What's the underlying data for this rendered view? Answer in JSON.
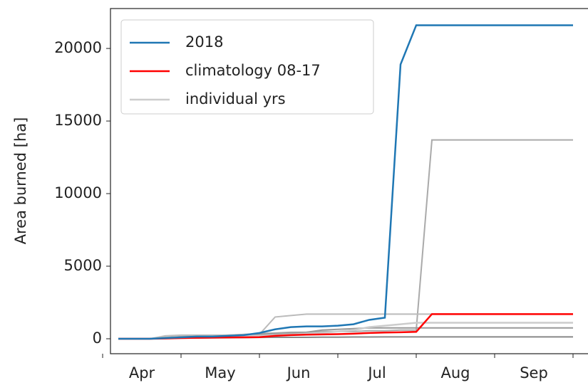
{
  "chart_data": {
    "type": "line",
    "ylabel": "Area burned [ha]",
    "categories": [
      null,
      null,
      "Apr",
      null,
      null,
      null,
      null,
      "May",
      null,
      null,
      null,
      null,
      "Jun",
      null,
      null,
      null,
      null,
      "Jul",
      null,
      null,
      null,
      null,
      "Aug",
      null,
      null,
      null,
      null,
      "Sep",
      null,
      null
    ],
    "ylim": [
      -1030,
      22750
    ],
    "yticks": [
      0,
      5000,
      10000,
      15000,
      20000
    ],
    "legend": "upper left",
    "series": [
      {
        "color": "#aaaaaa",
        "values": [
          0,
          0,
          0,
          100,
          150,
          200,
          200,
          250,
          300,
          350,
          400,
          450,
          450,
          500,
          500,
          500,
          550,
          550,
          600,
          600,
          13700,
          13700,
          13700,
          13700,
          13700,
          13700,
          13700,
          13700,
          13700,
          13700
        ]
      },
      {
        "color": "#bbbbbb",
        "values": [
          0,
          0,
          0,
          200,
          250,
          250,
          250,
          250,
          300,
          300,
          1500,
          1600,
          1700,
          1700,
          1700,
          1700,
          1700,
          1700,
          1700,
          1700,
          1700,
          1700,
          1700,
          1700,
          1700,
          1700,
          1700,
          1700,
          1700,
          1700
        ]
      },
      {
        "color": "#999999",
        "values": [
          0,
          0,
          0,
          50,
          80,
          100,
          150,
          200,
          250,
          300,
          350,
          400,
          450,
          600,
          650,
          700,
          750,
          750,
          750,
          750,
          750,
          750,
          750,
          750,
          750,
          750,
          750,
          750,
          750,
          750
        ]
      },
      {
        "color": "#888888",
        "values": [
          0,
          0,
          0,
          20,
          40,
          50,
          60,
          70,
          80,
          90,
          100,
          100,
          100,
          110,
          110,
          120,
          120,
          130,
          130,
          130,
          130,
          130,
          130,
          130,
          130,
          130,
          130,
          130,
          130,
          130
        ]
      },
      {
        "name": "individual yrs",
        "color": "#cccccc",
        "values": [
          0,
          0,
          0,
          50,
          80,
          100,
          150,
          150,
          200,
          200,
          250,
          300,
          350,
          400,
          500,
          600,
          800,
          900,
          1000,
          1100,
          1100,
          1100,
          1100,
          1100,
          1100,
          1100,
          1100,
          1100,
          1100,
          1100
        ]
      },
      {
        "name": "climatology 08-17",
        "color": "#ff0000",
        "values": [
          0,
          0,
          0,
          20,
          50,
          70,
          80,
          90,
          100,
          110,
          200,
          250,
          280,
          300,
          320,
          350,
          400,
          430,
          450,
          480,
          1700,
          1700,
          1700,
          1700,
          1700,
          1700,
          1700,
          1700,
          1700,
          1700
        ]
      },
      {
        "name": "2018",
        "color": "#1f77b4",
        "values": [
          0,
          0,
          0,
          50,
          100,
          150,
          150,
          200,
          250,
          400,
          650,
          800,
          850,
          850,
          900,
          1000,
          1300,
          1450,
          18900,
          21600,
          21600,
          21600,
          21600,
          21600,
          21600,
          21600,
          21600,
          21600,
          21600,
          21600
        ]
      }
    ]
  }
}
